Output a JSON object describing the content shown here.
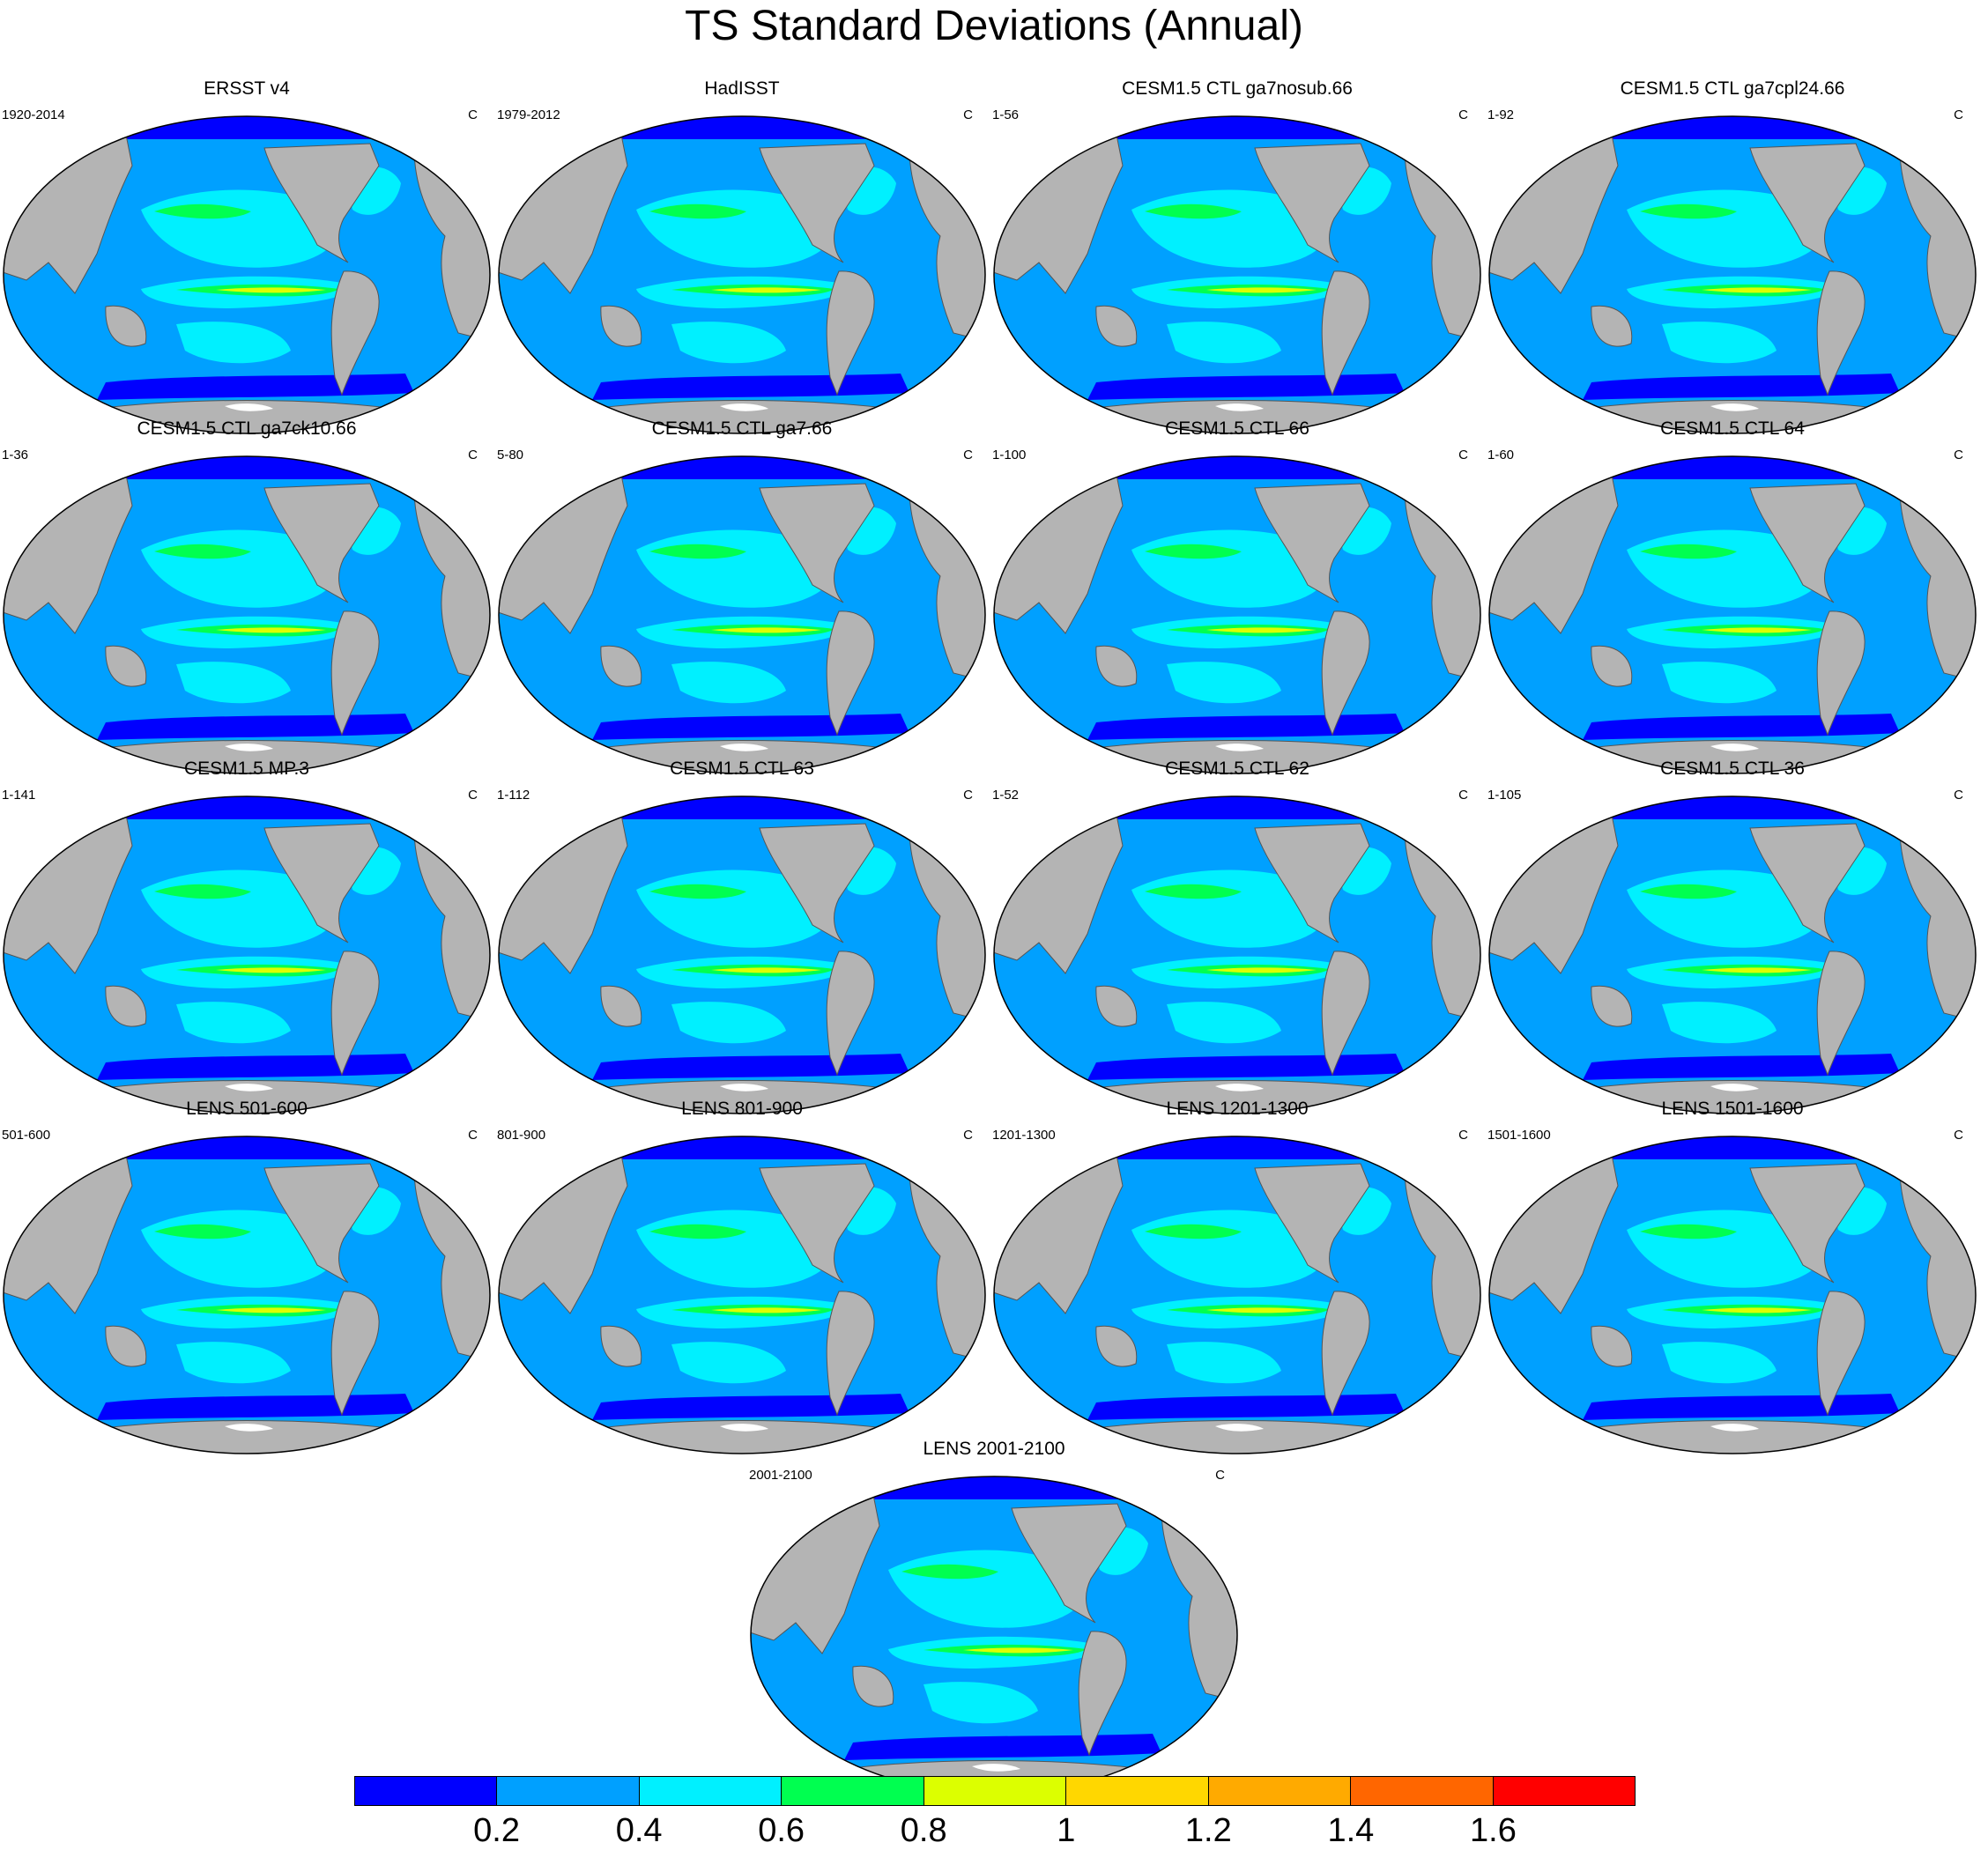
{
  "figure": {
    "title": "TS Standard Deviations (Annual)",
    "units": "C"
  },
  "colors": {
    "ocean_base": "#00a0ff",
    "ocean_low": "#0000ff",
    "ocean_mid": "#00f0ff",
    "ocean_green": "#00ff50",
    "ocean_yellow": "#dcff00",
    "ocean_red": "#ff2000",
    "land": "#b4b4b4",
    "ice": "#ffffff"
  },
  "panels": [
    {
      "title": "ERSST v4",
      "period": "1920-2014",
      "icon": "world-map-robinson"
    },
    {
      "title": "HadISST",
      "period": "1979-2012",
      "icon": "world-map-robinson"
    },
    {
      "title": "CESM1.5 CTL ga7nosub.66",
      "period": "1-56",
      "icon": "world-map-robinson"
    },
    {
      "title": "CESM1.5 CTL ga7cpl24.66",
      "period": "1-92",
      "icon": "world-map-robinson"
    },
    {
      "title": "CESM1.5 CTL ga7ck10.66",
      "period": "1-36",
      "icon": "world-map-robinson"
    },
    {
      "title": "CESM1.5 CTL ga7.66",
      "period": "5-80",
      "icon": "world-map-robinson"
    },
    {
      "title": "CESM1.5 CTL 66",
      "period": "1-100",
      "icon": "world-map-robinson"
    },
    {
      "title": "CESM1.5 CTL 64",
      "period": "1-60",
      "icon": "world-map-robinson"
    },
    {
      "title": "CESM1.5 MP.3",
      "period": "1-141",
      "icon": "world-map-robinson"
    },
    {
      "title": "CESM1.5 CTL 63",
      "period": "1-112",
      "icon": "world-map-robinson"
    },
    {
      "title": "CESM1.5 CTL 62",
      "period": "1-52",
      "icon": "world-map-robinson"
    },
    {
      "title": "CESM1.5 CTL 36",
      "period": "1-105",
      "icon": "world-map-robinson"
    },
    {
      "title": "LENS 501-600",
      "period": "501-600",
      "icon": "world-map-robinson"
    },
    {
      "title": "LENS 801-900",
      "period": "801-900",
      "icon": "world-map-robinson"
    },
    {
      "title": "LENS 1201-1300",
      "period": "1201-1300",
      "icon": "world-map-robinson"
    },
    {
      "title": "LENS 1501-1600",
      "period": "1501-1600",
      "icon": "world-map-robinson"
    },
    {
      "title": "LENS 2001-2100",
      "period": "2001-2100",
      "icon": "world-map-robinson"
    }
  ],
  "colorbar": {
    "colors": [
      "#0000ff",
      "#00a0ff",
      "#00f0ff",
      "#00ff50",
      "#dcff00",
      "#ffd700",
      "#ffaa00",
      "#ff6600",
      "#ff0000"
    ],
    "tick_labels": [
      "0.2",
      "0.4",
      "0.6",
      "0.8",
      "1",
      "1.2",
      "1.4",
      "1.6"
    ]
  }
}
